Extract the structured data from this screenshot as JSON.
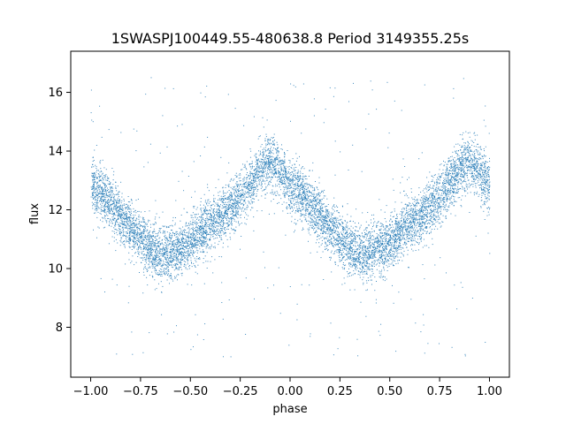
{
  "chart_data": {
    "type": "scatter",
    "title": "1SWASPJ100449.55-480638.8 Period 3149355.25s",
    "xlabel": "phase",
    "ylabel": "flux",
    "xlim": [
      -1.1,
      1.1
    ],
    "ylim": [
      6.3,
      17.4
    ],
    "xticks": [
      -1.0,
      -0.75,
      -0.5,
      -0.25,
      0.0,
      0.25,
      0.5,
      0.75,
      1.0
    ],
    "xtick_labels": [
      "−1.00",
      "−0.75",
      "−0.50",
      "−0.25",
      "0.00",
      "0.25",
      "0.50",
      "0.75",
      "1.00"
    ],
    "yticks": [
      8,
      10,
      12,
      14,
      16
    ],
    "ytick_labels": [
      "8",
      "10",
      "12",
      "14",
      "16"
    ],
    "grid": false,
    "marker_color": "#1f77b4",
    "series": [
      {
        "values_description_points": [
          [
            -1.0,
            12.8
          ],
          [
            -0.95,
            12.6
          ],
          [
            -0.9,
            12.2
          ],
          [
            -0.85,
            11.8
          ],
          [
            -0.8,
            11.4
          ],
          [
            -0.75,
            11.0
          ],
          [
            -0.7,
            10.7
          ],
          [
            -0.65,
            10.5
          ],
          [
            -0.6,
            10.6
          ],
          [
            -0.55,
            10.7
          ],
          [
            -0.5,
            10.9
          ],
          [
            -0.45,
            11.2
          ],
          [
            -0.4,
            11.5
          ],
          [
            -0.35,
            11.8
          ],
          [
            -0.3,
            12.1
          ],
          [
            -0.25,
            12.5
          ],
          [
            -0.2,
            12.9
          ],
          [
            -0.15,
            13.4
          ],
          [
            -0.1,
            13.7
          ],
          [
            -0.05,
            13.3
          ],
          [
            0.0,
            12.8
          ],
          [
            0.05,
            12.6
          ],
          [
            0.1,
            12.2
          ],
          [
            0.15,
            11.8
          ],
          [
            0.2,
            11.4
          ],
          [
            0.25,
            11.0
          ],
          [
            0.3,
            10.7
          ],
          [
            0.35,
            10.5
          ],
          [
            0.4,
            10.6
          ],
          [
            0.45,
            10.7
          ],
          [
            0.5,
            10.9
          ],
          [
            0.55,
            11.2
          ],
          [
            0.6,
            11.5
          ],
          [
            0.65,
            11.8
          ],
          [
            0.7,
            12.1
          ],
          [
            0.75,
            12.5
          ],
          [
            0.8,
            12.9
          ],
          [
            0.85,
            13.4
          ],
          [
            0.9,
            13.7
          ],
          [
            0.95,
            13.3
          ],
          [
            1.0,
            12.8
          ]
        ]
      }
    ]
  }
}
